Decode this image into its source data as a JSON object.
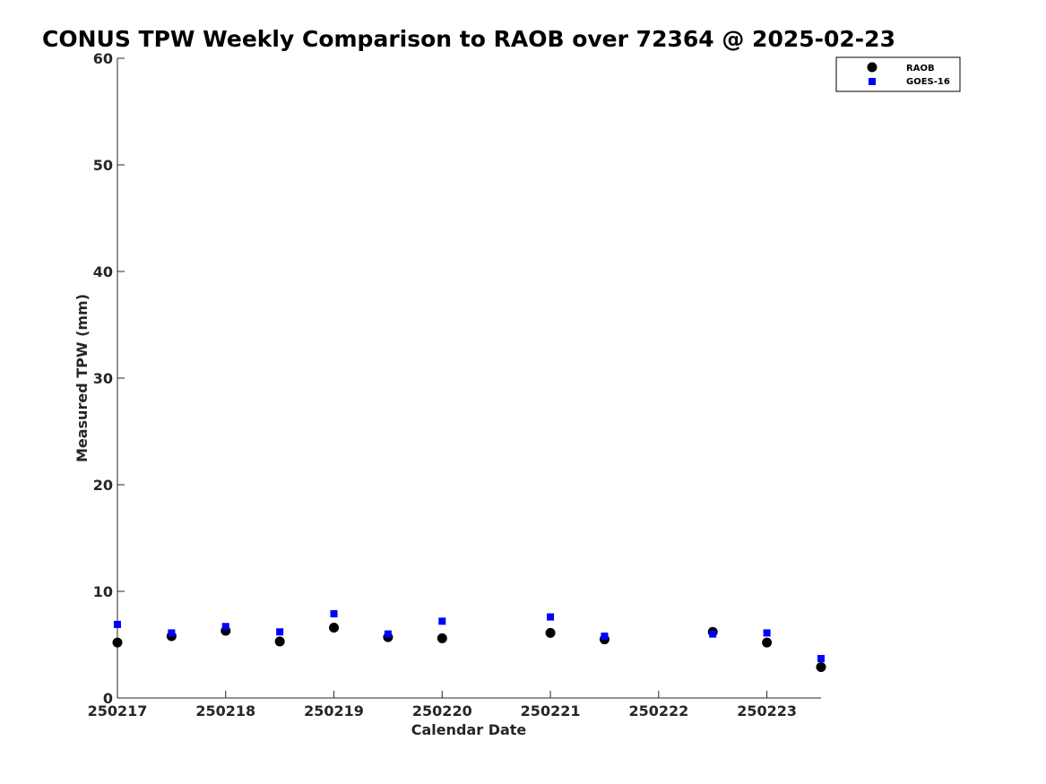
{
  "chart_data": {
    "type": "scatter",
    "title": "CONUS TPW Weekly Comparison to RAOB over 72364 @ 2025-02-23",
    "xlabel": "Calendar Date",
    "ylabel": "Measured TPW (mm)",
    "x_tick_labels": [
      "250217",
      "250218",
      "250219",
      "250220",
      "250221",
      "250222",
      "250223"
    ],
    "x_ticks": [
      0,
      1,
      2,
      3,
      4,
      5,
      6
    ],
    "xlim": [
      0,
      6.5
    ],
    "ylim": [
      0,
      60
    ],
    "y_ticks": [
      0,
      10,
      20,
      30,
      40,
      50,
      60
    ],
    "grid": false,
    "legend_position": "top-right",
    "series": [
      {
        "name": "RAOB",
        "marker": "circle",
        "color": "#000000",
        "points": [
          [
            0.0,
            5.2
          ],
          [
            0.5,
            5.8
          ],
          [
            1.0,
            6.3
          ],
          [
            1.5,
            5.3
          ],
          [
            2.0,
            6.6
          ],
          [
            2.5,
            5.7
          ],
          [
            3.0,
            5.6
          ],
          [
            4.0,
            6.1
          ],
          [
            4.5,
            5.5
          ],
          [
            5.5,
            6.2
          ],
          [
            6.0,
            5.2
          ],
          [
            6.5,
            2.9
          ]
        ]
      },
      {
        "name": "GOES-16",
        "marker": "square",
        "color": "#0000ff",
        "points": [
          [
            0.0,
            6.9
          ],
          [
            0.5,
            6.1
          ],
          [
            1.0,
            6.7
          ],
          [
            1.5,
            6.2
          ],
          [
            2.0,
            7.9
          ],
          [
            2.5,
            6.0
          ],
          [
            3.0,
            7.2
          ],
          [
            4.0,
            7.6
          ],
          [
            4.5,
            5.8
          ],
          [
            5.5,
            6.0
          ],
          [
            6.0,
            6.1
          ],
          [
            6.5,
            3.7
          ]
        ]
      }
    ]
  }
}
